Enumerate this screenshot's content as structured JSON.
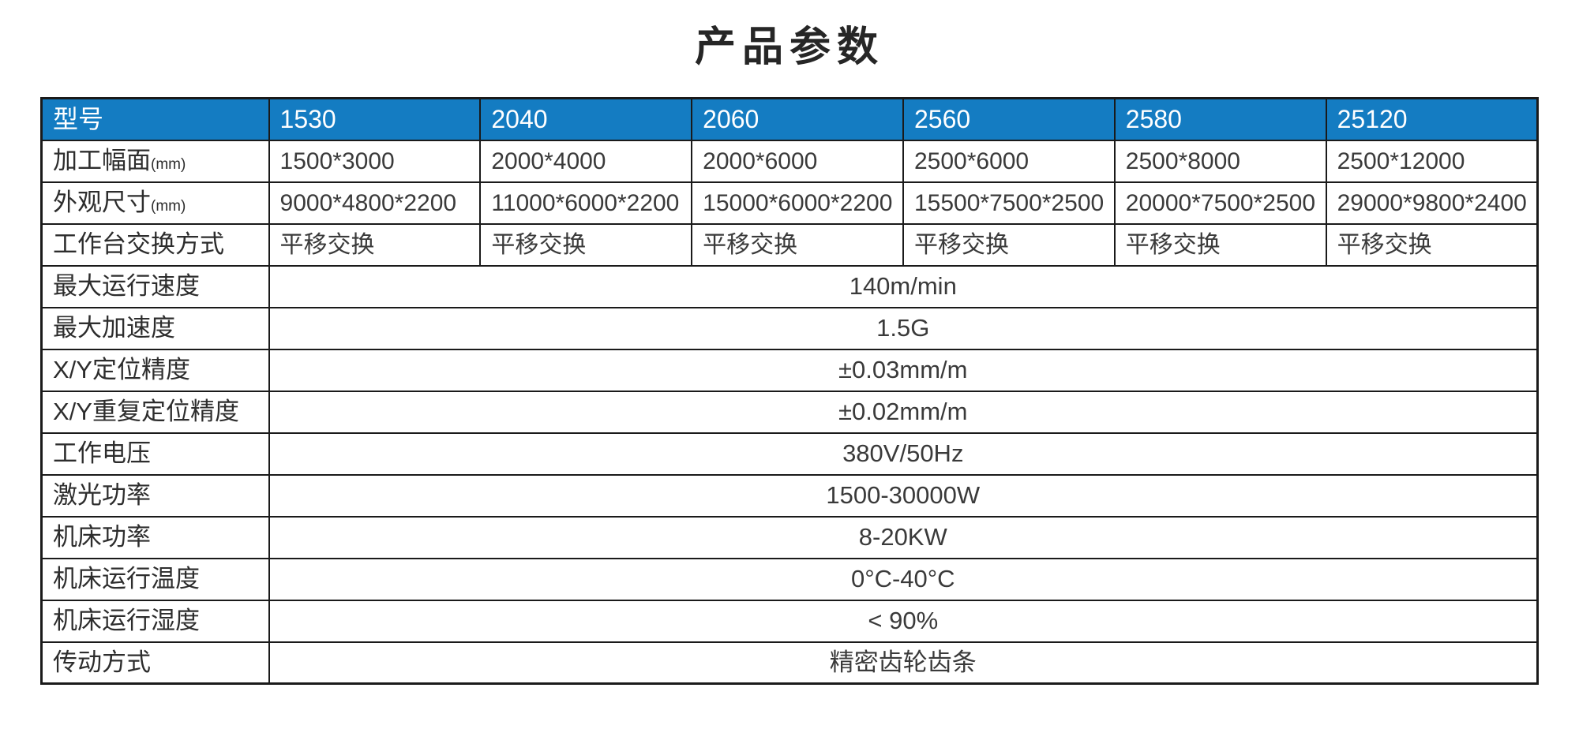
{
  "title": "产品参数",
  "colors": {
    "header_bg": "#147cc2",
    "header_text": "#ffffff",
    "border": "#1a1a1a",
    "label_text": "#2d2d2d",
    "value_text": "#3a3a3a"
  },
  "table": {
    "header": {
      "label": "型号",
      "models": [
        "1530",
        "2040",
        "2060",
        "2560",
        "2580",
        "25120"
      ]
    },
    "model_rows": [
      {
        "label": "加工幅面",
        "unit": "(mm)",
        "values": [
          "1500*3000",
          "2000*4000",
          "2000*6000",
          "2500*6000",
          "2500*8000",
          "2500*12000"
        ]
      },
      {
        "label": "外观尺寸",
        "unit": "(mm)",
        "values": [
          "9000*4800*2200",
          "11000*6000*2200",
          "15000*6000*2200",
          "15500*7500*2500",
          "20000*7500*2500",
          "29000*9800*2400"
        ]
      },
      {
        "label": "工作台交换方式",
        "unit": "",
        "values": [
          "平移交换",
          "平移交换",
          "平移交换",
          "平移交换",
          "平移交换",
          "平移交换"
        ]
      }
    ],
    "shared_rows": [
      {
        "label": "最大运行速度",
        "value": "140m/min"
      },
      {
        "label": "最大加速度",
        "value": "1.5G"
      },
      {
        "label": "X/Y定位精度",
        "value": "±0.03mm/m"
      },
      {
        "label": "X/Y重复定位精度",
        "value": "±0.02mm/m"
      },
      {
        "label": "工作电压",
        "value": "380V/50Hz"
      },
      {
        "label": "激光功率",
        "value": "1500-30000W"
      },
      {
        "label": "机床功率",
        "value": "8-20KW"
      },
      {
        "label": "机床运行温度",
        "value": "0°C-40°C"
      },
      {
        "label": "机床运行湿度",
        "value": "< 90%"
      },
      {
        "label": "传动方式",
        "value": "精密齿轮齿条"
      }
    ]
  }
}
